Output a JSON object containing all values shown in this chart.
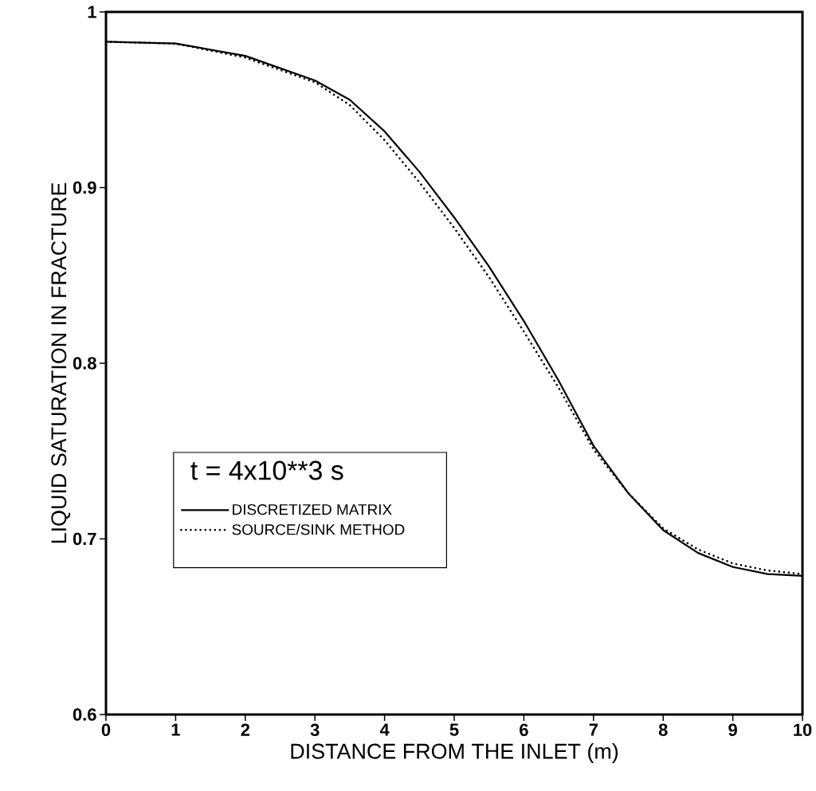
{
  "chart_data": {
    "type": "line",
    "xlabel": "DISTANCE FROM THE INLET (m)",
    "ylabel": "LIQUID SATURATION IN FRACTURE",
    "legend_title": "t = 4x10**3 s",
    "x": [
      0,
      1,
      2,
      3,
      3.5,
      4,
      4.5,
      5,
      5.5,
      6,
      6.5,
      7,
      7.5,
      8,
      8.5,
      9,
      9.5,
      10
    ],
    "series": [
      {
        "name": "DISCRETIZED MATRIX",
        "color": "#000000",
        "line_style": "solid",
        "values": [
          0.983,
          0.982,
          0.975,
          0.961,
          0.95,
          0.932,
          0.909,
          0.883,
          0.855,
          0.824,
          0.79,
          0.753,
          0.726,
          0.705,
          0.692,
          0.684,
          0.68,
          0.679
        ]
      },
      {
        "name": "SOURCE/SINK METHOD",
        "color": "#000000",
        "line_style": "dotted",
        "values": [
          0.983,
          0.982,
          0.974,
          0.96,
          0.947,
          0.927,
          0.903,
          0.877,
          0.849,
          0.818,
          0.786,
          0.751,
          0.726,
          0.706,
          0.694,
          0.686,
          0.682,
          0.68
        ]
      }
    ],
    "xlim": [
      0,
      10
    ],
    "ylim": [
      0.6,
      1
    ],
    "xticks": [
      0,
      1,
      2,
      3,
      4,
      5,
      6,
      7,
      8,
      9,
      10
    ],
    "yticks": [
      {
        "value": 0.6,
        "label": "0.6"
      },
      {
        "value": 0.7,
        "label": "0.7"
      },
      {
        "value": 0.8,
        "label": "0.8"
      },
      {
        "value": 0.9,
        "label": "0.9"
      },
      {
        "value": 1,
        "label": "1"
      }
    ],
    "grid": false,
    "legend": "left",
    "marker": "none"
  }
}
